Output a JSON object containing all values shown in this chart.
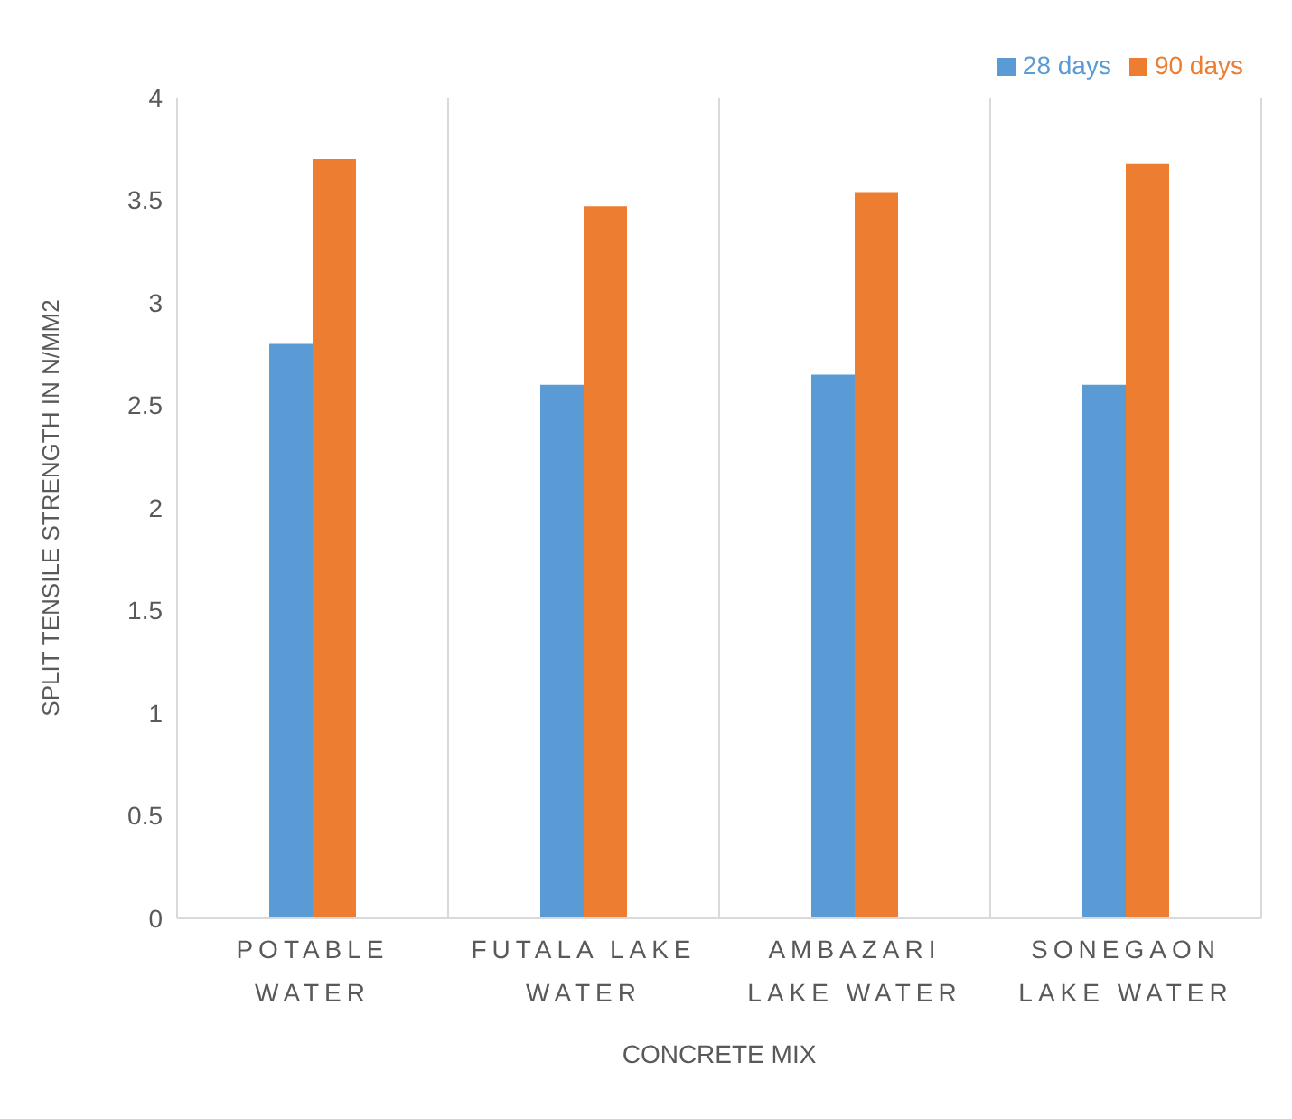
{
  "chart_data": {
    "type": "bar",
    "xlabel": "CONCRETE MIX",
    "ylabel": "SPLIT TENSILE STRENGTH IN N/MM2",
    "categories": [
      "POTABLE WATER",
      "FUTALA LAKE WATER",
      "AMBAZARI LAKE WATER",
      "SONEGAON LAKE WATER"
    ],
    "series": [
      {
        "name": "28 days",
        "color": "#5b9bd5",
        "values": [
          2.8,
          2.6,
          2.65,
          2.6
        ]
      },
      {
        "name": "90 days",
        "color": "#ed7d31",
        "values": [
          3.7,
          3.47,
          3.54,
          3.68
        ]
      }
    ],
    "ylim": [
      0,
      4
    ],
    "yticks": [
      0,
      0.5,
      1,
      1.5,
      2,
      2.5,
      3,
      3.5,
      4
    ],
    "grid": "x",
    "legend": "top right"
  }
}
